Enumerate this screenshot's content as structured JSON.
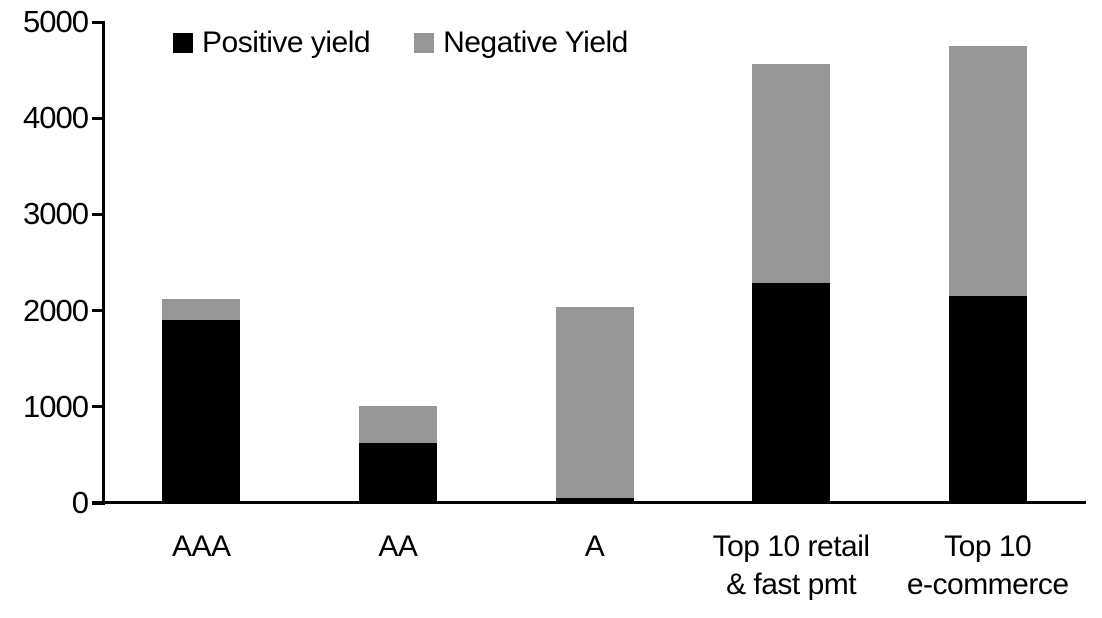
{
  "chart_data": {
    "type": "bar",
    "stacked": true,
    "title": "",
    "xlabel": "",
    "ylabel": "",
    "categories": [
      "AAA",
      "AA",
      "A",
      "Top 10 retail\n& fast pmt",
      "Top 10\ne-commerce"
    ],
    "series": [
      {
        "name": "Positive yield",
        "color": "#000000",
        "values": [
          1900,
          625,
          50,
          2290,
          2150
        ]
      },
      {
        "name": "Negative Yield",
        "color": "#969696",
        "values": [
          225,
          380,
          1990,
          2270,
          2600
        ]
      }
    ],
    "totals": [
      2125,
      1005,
      2040,
      4560,
      4750
    ],
    "ylim": [
      0,
      5000
    ],
    "y_ticks": [
      0,
      1000,
      2000,
      3000,
      4000,
      5000
    ],
    "legend_position": "top",
    "grid": false,
    "axis_color": "#000000",
    "background": "#ffffff"
  }
}
